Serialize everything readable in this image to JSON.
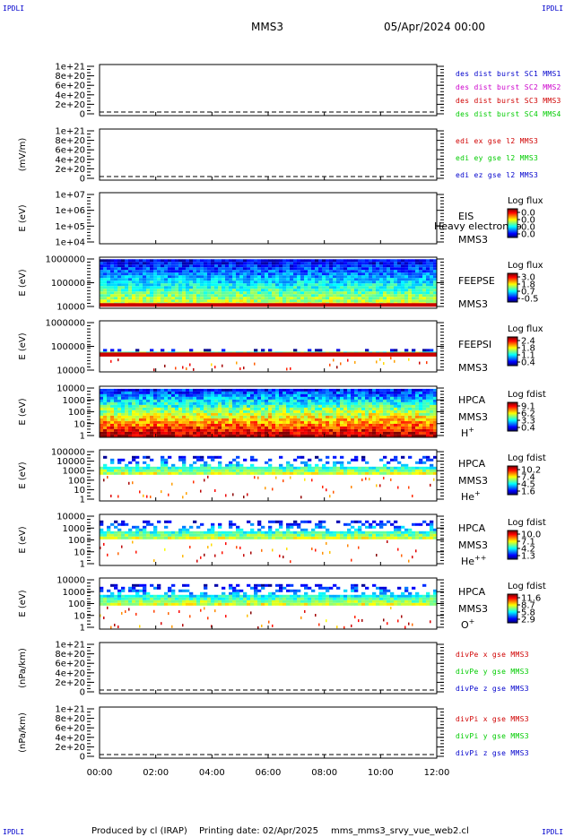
{
  "corner_label": "IPDLI",
  "header": {
    "spacecraft": "MMS3",
    "date": "05/Apr/2024 00:00"
  },
  "footer": {
    "produced": "Produced by cl (IRAP)",
    "printing": "Printing date: 02/Apr/2025",
    "file": "mms_mms3_srvy_vue_web2.cl"
  },
  "colors": {
    "red": "#d00000",
    "green": "#00cc00",
    "blue": "#0000cc",
    "magenta": "#cc00cc",
    "axis": "#000000"
  },
  "chart_data": [
    {
      "type": "line",
      "id": "p1",
      "ylabel": "",
      "ticks": [
        "1e+21",
        "8e+20",
        "6e+20",
        "4e+20",
        "2e+20",
        "0"
      ],
      "ylim": [
        0,
        1e+21
      ],
      "dashed_zero": true,
      "legend": [
        {
          "text": "des dist burst SC1 MMS1",
          "color": "#0000cc"
        },
        {
          "text": "des dist burst SC2 MMS2",
          "color": "#cc00cc"
        },
        {
          "text": "des dist burst SC3 MMS3",
          "color": "#d00000"
        },
        {
          "text": "des dist burst SC4 MMS4",
          "color": "#00cc00"
        }
      ]
    },
    {
      "type": "line",
      "id": "p2",
      "ylabel": "(mV/m)",
      "ticks": [
        "1e+21",
        "8e+20",
        "6e+20",
        "4e+20",
        "2e+20",
        "0"
      ],
      "ylim": [
        0,
        1e+21
      ],
      "dashed_zero": true,
      "legend": [
        {
          "text": "edi ex gse l2 MMS3",
          "color": "#d00000"
        },
        {
          "text": "edi ey gse l2 MMS3",
          "color": "#00cc00"
        },
        {
          "text": "edi ez gse l2 MMS3",
          "color": "#0000cc"
        }
      ]
    },
    {
      "type": "heatmap",
      "id": "p3",
      "ylabel": "E (eV)",
      "ticks": [
        "1e+07",
        "1e+06",
        "1e+05",
        "1e+04"
      ],
      "ylim": [
        10000.0,
        10000000.0
      ],
      "empty": true,
      "labels": [
        "EIS",
        "MMS3"
      ],
      "overlay": "Heavy electron to",
      "cbar_title": "Log flux",
      "cbar_ticks": [
        "0.0",
        "0.0",
        "0.0",
        "0.0"
      ]
    },
    {
      "type": "heatmap",
      "id": "p4",
      "ylabel": "E (eV)",
      "ticks": [
        "1000000",
        "100000",
        "10000"
      ],
      "ylim": [
        10000.0,
        1000000.0
      ],
      "labels": [
        "FEEPSE",
        "MMS3"
      ],
      "cbar_title": "Log flux",
      "cbar_ticks": [
        "3.0",
        "1.8",
        "0.7",
        "-0.5"
      ],
      "profile": {
        "top": 0.04,
        "bottom": 0.9,
        "band": [
          0.9,
          0.97
        ],
        "sparse": false
      }
    },
    {
      "type": "heatmap",
      "id": "p5",
      "ylabel": "E (eV)",
      "ticks": [
        "1000000",
        "100000",
        "10000"
      ],
      "ylim": [
        10000.0,
        1000000.0
      ],
      "labels": [
        "FEEPSI",
        "MMS3"
      ],
      "cbar_title": "Log flux",
      "cbar_ticks": [
        "2.4",
        "1.8",
        "1.1",
        "0.4"
      ],
      "profile": {
        "top": 0.55,
        "bottom": 0.62,
        "band": [
          0.62,
          0.7
        ],
        "sparse": true
      }
    },
    {
      "type": "heatmap",
      "id": "p6",
      "ylabel": "E (eV)",
      "ticks": [
        "10000",
        "1000",
        "100",
        "10",
        "1"
      ],
      "ylim": [
        1,
        10000.0
      ],
      "labels": [
        "HPCA",
        "MMS3",
        "H+"
      ],
      "cbar_title": "Log fdist",
      "cbar_ticks": [
        "9.1",
        "6.2",
        "3.3",
        "0.4"
      ],
      "profile": {
        "top": 0.05,
        "bottom": 0.98,
        "band": null,
        "sparse": false,
        "hot": true
      }
    },
    {
      "type": "heatmap",
      "id": "p7",
      "ylabel": "E (eV)",
      "ticks": [
        "100000",
        "10000",
        "1000",
        "100",
        "10",
        "1"
      ],
      "ylim": [
        1,
        100000.0
      ],
      "labels": [
        "HPCA",
        "MMS3",
        "He+"
      ],
      "cbar_title": "Log fdist",
      "cbar_ticks": [
        "10.2",
        "7.4",
        "4.5",
        "1.6"
      ],
      "profile": {
        "top": 0.12,
        "bottom": 0.45,
        "band": null,
        "sparse": true
      }
    },
    {
      "type": "heatmap",
      "id": "p8",
      "ylabel": "E (eV)",
      "ticks": [
        "10000",
        "1000",
        "100",
        "10",
        "1"
      ],
      "ylim": [
        1,
        10000.0
      ],
      "labels": [
        "HPCA",
        "MMS3",
        "He++"
      ],
      "cbar_title": "Log fdist",
      "cbar_ticks": [
        "10.0",
        "7.1",
        "4.2",
        "1.3"
      ],
      "profile": {
        "top": 0.12,
        "bottom": 0.45,
        "band": null,
        "sparse": true
      }
    },
    {
      "type": "heatmap",
      "id": "p9",
      "ylabel": "E (eV)",
      "ticks": [
        "10000",
        "1000",
        "100",
        "10",
        "1"
      ],
      "ylim": [
        1,
        10000.0
      ],
      "labels": [
        "HPCA",
        "MMS3",
        "O+"
      ],
      "cbar_title": "Log fdist",
      "cbar_ticks": [
        "11.6",
        "8.7",
        "5.8",
        "2.9"
      ],
      "profile": {
        "top": 0.12,
        "bottom": 0.5,
        "band": null,
        "sparse": true
      }
    },
    {
      "type": "line",
      "id": "p10",
      "ylabel": "(nPa/km)",
      "ticks": [
        "1e+21",
        "8e+20",
        "6e+20",
        "4e+20",
        "2e+20",
        "0"
      ],
      "ylim": [
        0,
        1e+21
      ],
      "dashed_zero": true,
      "legend": [
        {
          "text": "divPe x gse MMS3",
          "color": "#d00000"
        },
        {
          "text": "divPe y gse MMS3",
          "color": "#00cc00"
        },
        {
          "text": "divPe z gse MMS3",
          "color": "#0000cc"
        }
      ]
    },
    {
      "type": "line",
      "id": "p11",
      "ylabel": "(nPa/km)",
      "ticks": [
        "1e+21",
        "8e+20",
        "6e+20",
        "4e+20",
        "2e+20",
        "0"
      ],
      "ylim": [
        0,
        1e+21
      ],
      "dashed_zero": true,
      "legend": [
        {
          "text": "divPi x gse MMS3",
          "color": "#d00000"
        },
        {
          "text": "divPi y gse MMS3",
          "color": "#00cc00"
        },
        {
          "text": "divPi z gse MMS3",
          "color": "#0000cc"
        }
      ]
    }
  ],
  "x_axis": {
    "ticks": [
      "00:00",
      "02:00",
      "04:00",
      "06:00",
      "08:00",
      "10:00",
      "12:00"
    ]
  }
}
